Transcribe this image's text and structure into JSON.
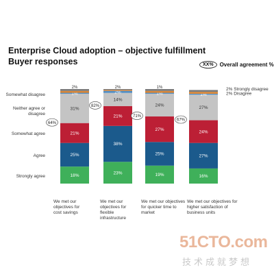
{
  "title": {
    "line1": "Enterprise Cloud adoption – objective fulfillment",
    "line2": "Buyer responses"
  },
  "legend": {
    "marker": "XX%",
    "label": "Overall agreement %"
  },
  "colors": {
    "strongly_agree": "#3fb05a",
    "agree": "#1b5a8c",
    "somewhat_agree": "#bc1f35",
    "neither": "#c4c4c4",
    "somewhat_disagree": "#4d8ec8",
    "disagree": "#d98535",
    "strongly_disagree": "#7a7a7a"
  },
  "chart_data": {
    "type": "bar",
    "stacked": true,
    "ylim": [
      0,
      100
    ],
    "categories": [
      "We met our objectives for cost savings",
      "We met our objectives for flexible infrastructure",
      "We met our objectives for quicker time to market",
      "We met our objectives for higher satisfaction of business units"
    ],
    "series": [
      {
        "name": "Strongly agree",
        "values": [
          18,
          23,
          19,
          16
        ],
        "labels": [
          "18%",
          "23%",
          "19%",
          "16%"
        ]
      },
      {
        "name": "Agree",
        "values": [
          25,
          38,
          25,
          27
        ],
        "labels": [
          "25%",
          "38%",
          "25%",
          "27%"
        ]
      },
      {
        "name": "Somewhat agree",
        "values": [
          21,
          21,
          27,
          24
        ],
        "labels": [
          "21%",
          "21%",
          "27%",
          "24%"
        ]
      },
      {
        "name": "Neither agree or disagree",
        "values": [
          31,
          14,
          24,
          27
        ],
        "labels": [
          "31%",
          "14%",
          "24%",
          "27%"
        ]
      },
      {
        "name": "Somewhat disagree",
        "values": [
          1,
          2,
          1,
          1
        ],
        "labels": [
          "1%",
          "2%",
          "1%",
          "1%"
        ]
      },
      {
        "name": "Disagree",
        "values": [
          2,
          1,
          2,
          2
        ],
        "labels": [
          "",
          "",
          "",
          ""
        ]
      },
      {
        "name": "Strongly disagree",
        "values": [
          2,
          1,
          2,
          2
        ],
        "labels": [
          "",
          "",
          "",
          ""
        ]
      }
    ],
    "overall_agreement": [
      "64%",
      "82%",
      "71%",
      "67%"
    ],
    "top_annotations": [
      "2%",
      "2%",
      "1%",
      ""
    ],
    "right_annotations": [
      "2% Strongly disagree",
      "2% Disagree"
    ],
    "row_labels": [
      "Somewhat disagree",
      "Neither agree or\ndisagree",
      "Somewhat agree",
      "Agree",
      "Strongly agree"
    ]
  },
  "cat_labels": [
    "We met our\nobjectives for\ncost savings",
    "We met our\nobjectives for\nflexible\ninfrastructure",
    "We met our objectives\nfor quicker time to\nmarket",
    "We met our objectives for\nhigher satisfaction of\nbusiness units"
  ],
  "watermark": {
    "text": "51CTO.com",
    "subtitle": "技术成就梦想"
  }
}
